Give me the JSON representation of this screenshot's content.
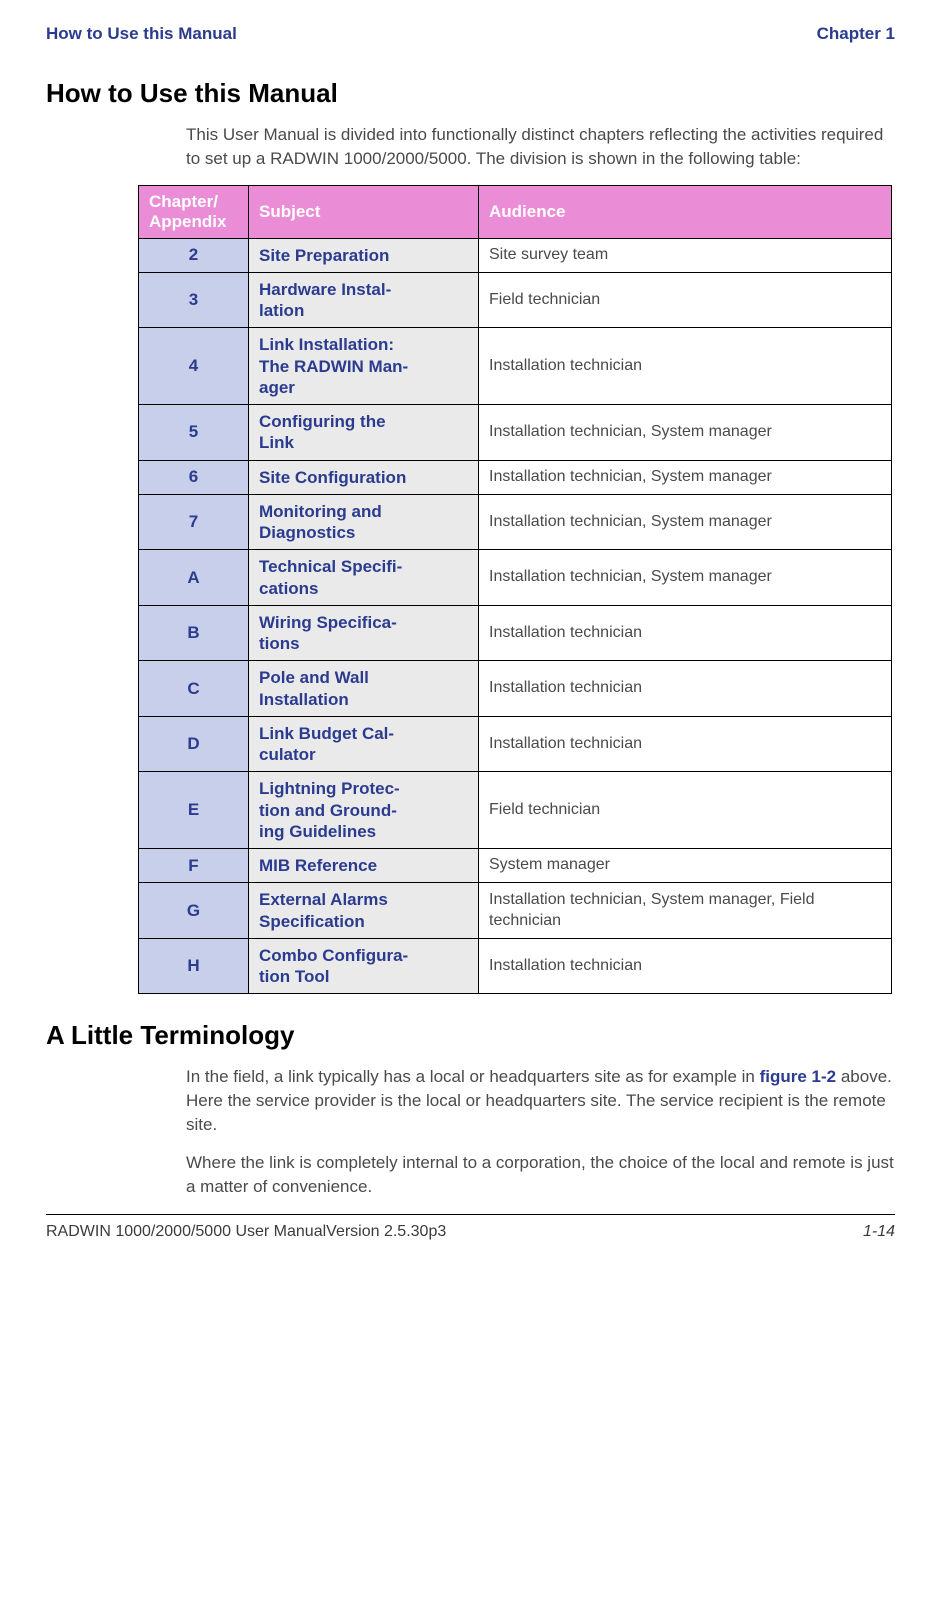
{
  "header": {
    "left": "How to Use this Manual",
    "right": "Chapter 1"
  },
  "section1": {
    "title": "How to Use this Manual",
    "para": "This User Manual is divided into functionally distinct chapters reflecting the activities required to set up a RADWIN 1000/2000/5000. The division is shown in the following table:"
  },
  "table": {
    "headers": {
      "c1": "Chapter/\nAppendix",
      "c2": "Subject",
      "c3": "Audience"
    },
    "rows": [
      {
        "ch": "2",
        "subj": "Site Preparation",
        "aud": "Site survey team"
      },
      {
        "ch": "3",
        "subj": "Hardware Instal-\nlation",
        "aud": "Field technician"
      },
      {
        "ch": "4",
        "subj": "Link Installation:\nThe RADWIN Man-\nager",
        "aud": "Installation technician"
      },
      {
        "ch": "5",
        "subj": "Configuring the\nLink",
        "aud": "Installation technician, System manager"
      },
      {
        "ch": "6",
        "subj": "Site Configuration",
        "aud": "Installation technician, System manager"
      },
      {
        "ch": "7",
        "subj": "Monitoring and\nDiagnostics",
        "aud": "Installation technician, System manager"
      },
      {
        "ch": "A",
        "subj": "Technical Specifi-\ncations",
        "aud": "Installation technician, System manager"
      },
      {
        "ch": "B",
        "subj": "Wiring Specifica-\ntions",
        "aud": "Installation technician"
      },
      {
        "ch": "C",
        "subj": "Pole and Wall\nInstallation",
        "aud": "Installation technician"
      },
      {
        "ch": "D",
        "subj": "Link Budget Cal-\nculator",
        "aud": "Installation technician"
      },
      {
        "ch": "E",
        "subj": "Lightning Protec-\ntion and Ground-\ning Guidelines",
        "aud": "Field technician"
      },
      {
        "ch": "F",
        "subj": "MIB Reference",
        "aud": "System manager"
      },
      {
        "ch": "G",
        "subj": "External Alarms\nSpecification",
        "aud": "Installation technician, System manager, Field technician"
      },
      {
        "ch": "H",
        "subj": "Combo Configura-\ntion Tool",
        "aud": "Installation technician"
      }
    ]
  },
  "section2": {
    "title": "A Little Terminology",
    "para1_pre": "In the field, a link typically has a local or headquarters site as for example in ",
    "para1_link": "figure 1-2",
    "para1_post": " above. Here the service provider is the local or headquarters site. The service recipient is the remote site.",
    "para2": "Where the link is completely internal to a corporation, the choice of the local and remote is just a matter of convenience."
  },
  "footer": {
    "left": "RADWIN 1000/2000/5000 User ManualVersion  2.5.30p3",
    "right": "1-14"
  }
}
